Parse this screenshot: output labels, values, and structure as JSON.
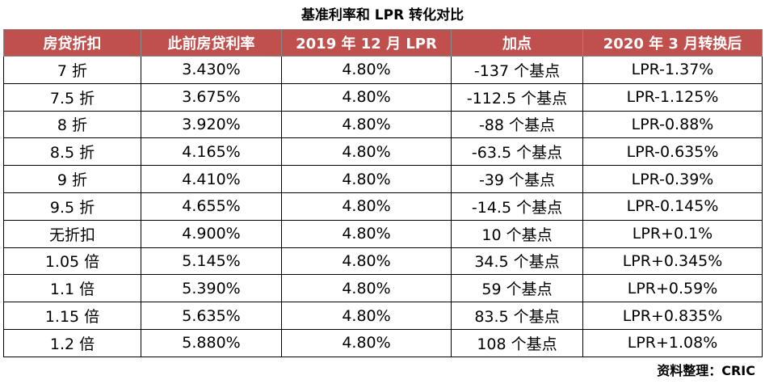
{
  "title": "基准利率和 LPR 转化对比",
  "table": {
    "headers": [
      "房贷折扣",
      "此前房贷利率",
      "2019 年 12 月 LPR",
      "加点",
      "2020 年 3 月转换后"
    ],
    "rows": [
      [
        "7 折",
        "3.430%",
        "4.80%",
        "-137 个基点",
        "LPR-1.37%"
      ],
      [
        "7.5 折",
        "3.675%",
        "4.80%",
        "-112.5 个基点",
        "LPR-1.125%"
      ],
      [
        "8 折",
        "3.920%",
        "4.80%",
        "-88 个基点",
        "LPR-0.88%"
      ],
      [
        "8.5 折",
        "4.165%",
        "4.80%",
        "-63.5 个基点",
        "LPR-0.635%"
      ],
      [
        "9 折",
        "4.410%",
        "4.80%",
        "-39 个基点",
        "LPR-0.39%"
      ],
      [
        "9.5 折",
        "4.655%",
        "4.80%",
        "-14.5 个基点",
        "LPR-0.145%"
      ],
      [
        "无折扣",
        "4.900%",
        "4.80%",
        "10 个基点",
        "LPR+0.1%"
      ],
      [
        "1.05 倍",
        "5.145%",
        "4.80%",
        "34.5 个基点",
        "LPR+0.345%"
      ],
      [
        "1.1 倍",
        "5.390%",
        "4.80%",
        "59 个基点",
        "LPR+0.59%"
      ],
      [
        "1.15 倍",
        "5.635%",
        "4.80%",
        "83.5 个基点",
        "LPR+0.835%"
      ],
      [
        "1.2 倍",
        "5.880%",
        "4.80%",
        "108 个基点",
        "LPR+1.08%"
      ]
    ]
  },
  "source": "资料整理：CRIC"
}
